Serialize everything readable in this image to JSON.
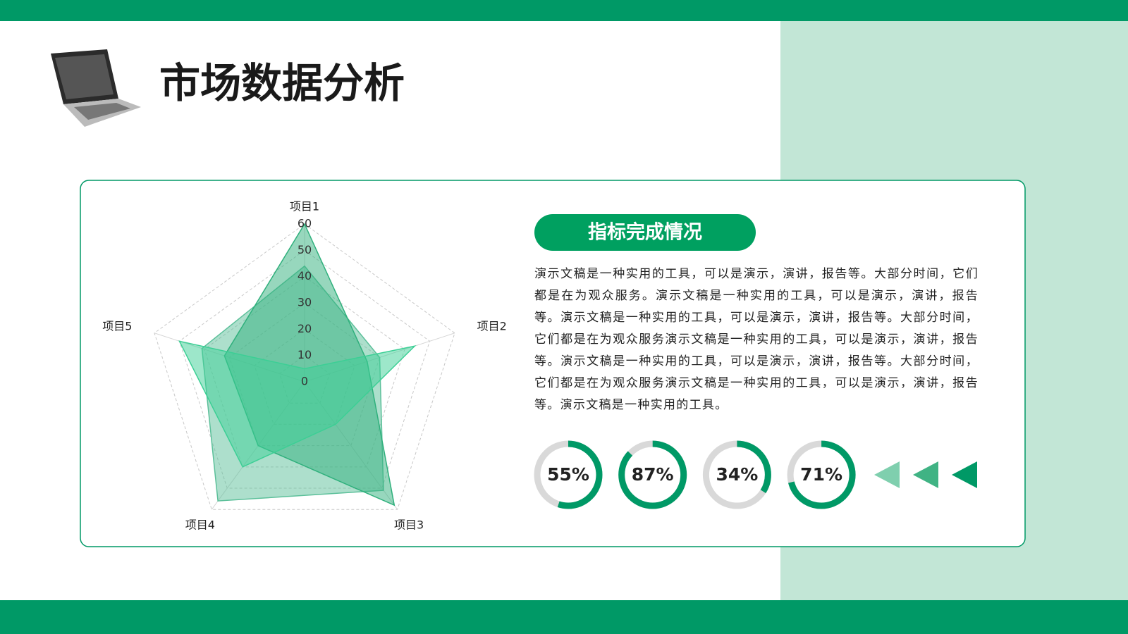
{
  "header": {
    "title": "市场数据分析"
  },
  "panel": {
    "heading": "指标完成情况",
    "body": "演示文稿是一种实用的工具，可以是演示，演讲，报告等。大部分时间，它们都是在为观众服务。演示文稿是一种实用的工具，可以是演示，演讲，报告等。演示文稿是一种实用的工具，可以是演示，演讲，报告等。大部分时间，它们都是在为观众服务演示文稿是一种实用的工具，可以是演示，演讲，报告等。演示文稿是一种实用的工具，可以是演示，演讲，报告等。大部分时间，它们都是在为观众服务演示文稿是一种实用的工具，可以是演示，演讲，报告等。演示文稿是一种实用的工具。"
  },
  "chart_data": [
    {
      "type": "radar",
      "categories": [
        "项目1",
        "项目2",
        "项目3",
        "项目4",
        "项目5"
      ],
      "ylim": [
        0,
        60
      ],
      "yticks": [
        0,
        10,
        20,
        30,
        40,
        50,
        60
      ],
      "grid": true,
      "series": [
        {
          "color": "#5cc09a",
          "values": [
            44,
            30,
            51,
            56,
            41
          ]
        },
        {
          "color": "#2fb07c",
          "values": [
            60,
            25,
            58,
            30,
            32
          ]
        },
        {
          "color": "#3ccf95",
          "values": [
            5,
            44,
            20,
            40,
            50
          ]
        }
      ]
    },
    {
      "type": "ring",
      "values": [
        55,
        87,
        34,
        71
      ],
      "value_labels": [
        "55%",
        "87%",
        "34%",
        "71%"
      ],
      "ylim": [
        0,
        100
      ],
      "color": "#009966",
      "track_color": "#d9d9d9"
    }
  ]
}
